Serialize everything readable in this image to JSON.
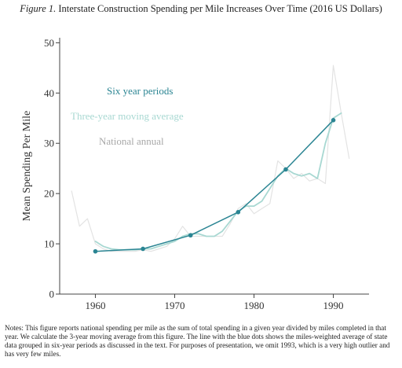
{
  "figure": {
    "label": "Figure 1.",
    "title": "Interstate Construction Spending per Mile Increases Over Time (2016 US Dollars)"
  },
  "notes": "Notes: This figure reports national spending per mile as the sum of total spending in a given year divided by miles completed in that year.  We calculate the 3-year moving average from this figure.  The line with the blue dots shows the miles-weighted average of state data grouped in six-year periods as discussed in the text.  For purposes of presentation, we omit 1993, which is a very high outlier and has very few miles.",
  "colors": {
    "six_year": "#2b8593",
    "moving_avg": "#a8d8d2",
    "annual": "#e3e3e3",
    "axis": "#444444"
  },
  "chart_data": {
    "type": "line",
    "title": "Interstate Construction Spending per Mile Increases Over Time (2016 US Dollars)",
    "xlabel": "",
    "ylabel": "Mean Spending Per Mile",
    "xlim": [
      1955.5,
      1994.5
    ],
    "ylim": [
      0,
      51
    ],
    "xticks": [
      1960,
      1970,
      1980,
      1990
    ],
    "yticks": [
      0,
      10,
      20,
      30,
      40,
      50
    ],
    "grid": false,
    "legend": "inline-upper-left",
    "series": [
      {
        "name": "National annual",
        "key": "annual",
        "x": [
          1957,
          1958,
          1959,
          1960,
          1961,
          1962,
          1963,
          1964,
          1965,
          1966,
          1967,
          1968,
          1969,
          1970,
          1971,
          1972,
          1973,
          1974,
          1975,
          1976,
          1977,
          1978,
          1979,
          1980,
          1981,
          1982,
          1983,
          1984,
          1985,
          1986,
          1987,
          1988,
          1989,
          1990,
          1991,
          1992
        ],
        "y": [
          20.5,
          13.5,
          15,
          10,
          9,
          8.5,
          8.5,
          8.5,
          8.5,
          8.8,
          8.5,
          9,
          9.5,
          11,
          13.5,
          11.5,
          11.5,
          11.5,
          11.5,
          11.5,
          14,
          17,
          18,
          16,
          17,
          18,
          26.5,
          25,
          23,
          24,
          22.5,
          23,
          22,
          45.5,
          36,
          27
        ]
      },
      {
        "name": "Three-year moving average",
        "key": "moving_avg",
        "x": [
          1960,
          1961,
          1962,
          1963,
          1964,
          1965,
          1966,
          1967,
          1968,
          1969,
          1970,
          1971,
          1972,
          1973,
          1974,
          1975,
          1976,
          1977,
          1978,
          1979,
          1980,
          1981,
          1982,
          1983,
          1984,
          1985,
          1986,
          1987,
          1988,
          1989,
          1990,
          1991
        ],
        "y": [
          10.5,
          9.5,
          9,
          8.8,
          8.8,
          8.8,
          9,
          9,
          9.5,
          10,
          10.5,
          11.5,
          12,
          12,
          11.5,
          11.5,
          12.5,
          14.5,
          16.5,
          17.5,
          17.5,
          18.5,
          21,
          23.5,
          25,
          24,
          23.5,
          24,
          23,
          30,
          35,
          36
        ]
      },
      {
        "name": "Six year periods",
        "key": "six_year",
        "markers": true,
        "x": [
          1960,
          1966,
          1972,
          1978,
          1984,
          1990
        ],
        "y": [
          8.5,
          9,
          11.7,
          16.3,
          24.8,
          34.6
        ]
      }
    ]
  }
}
